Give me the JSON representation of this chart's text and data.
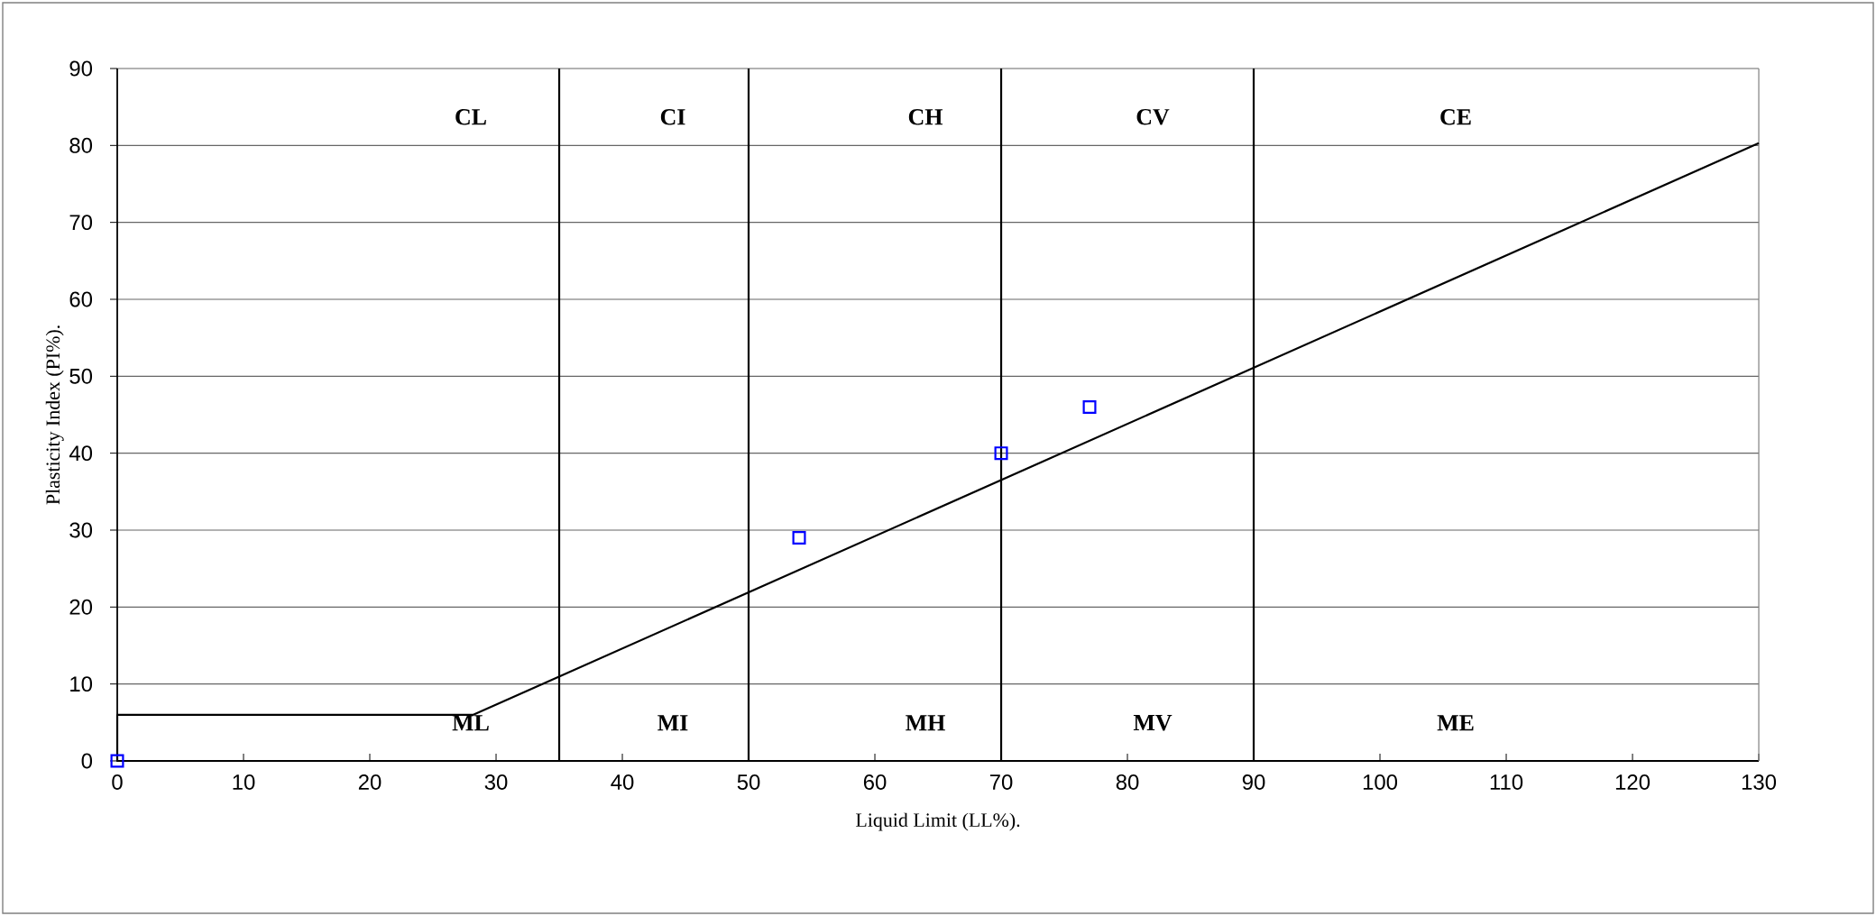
{
  "chart_data": {
    "type": "scatter",
    "xlabel": "Liquid Limit (LL%).",
    "ylabel": "Plasticity Index (PI%).",
    "xlim": [
      0,
      130
    ],
    "xticks": [
      0,
      10,
      20,
      30,
      40,
      50,
      60,
      70,
      80,
      90,
      100,
      110,
      120,
      130
    ],
    "ylim": [
      0,
      90
    ],
    "yticks": [
      0,
      10,
      20,
      30,
      40,
      50,
      60,
      70,
      80,
      90
    ],
    "grid": "y",
    "series": [
      {
        "color": "#0000ff",
        "marker": "square",
        "x": [
          0,
          54,
          70,
          77
        ],
        "values": [
          0,
          29,
          40,
          46
        ]
      },
      {
        "type": "line",
        "color": "#000000",
        "marker": "none",
        "line_style": "solid",
        "x": [
          0,
          0,
          28.2,
          130
        ],
        "values": [
          0,
          6,
          6,
          80.3
        ]
      }
    ],
    "ref_lines": [
      {
        "axis": "x",
        "value": 35,
        "color": "#000000"
      },
      {
        "axis": "x",
        "value": 50,
        "color": "#000000"
      },
      {
        "axis": "x",
        "value": 70,
        "color": "#000000"
      },
      {
        "axis": "x",
        "value": 90,
        "color": "#000000"
      }
    ],
    "annotations": [
      "CL",
      "CI",
      "CH",
      "CV",
      "CE",
      "ML",
      "MI",
      "MH",
      "MV",
      "ME"
    ]
  }
}
